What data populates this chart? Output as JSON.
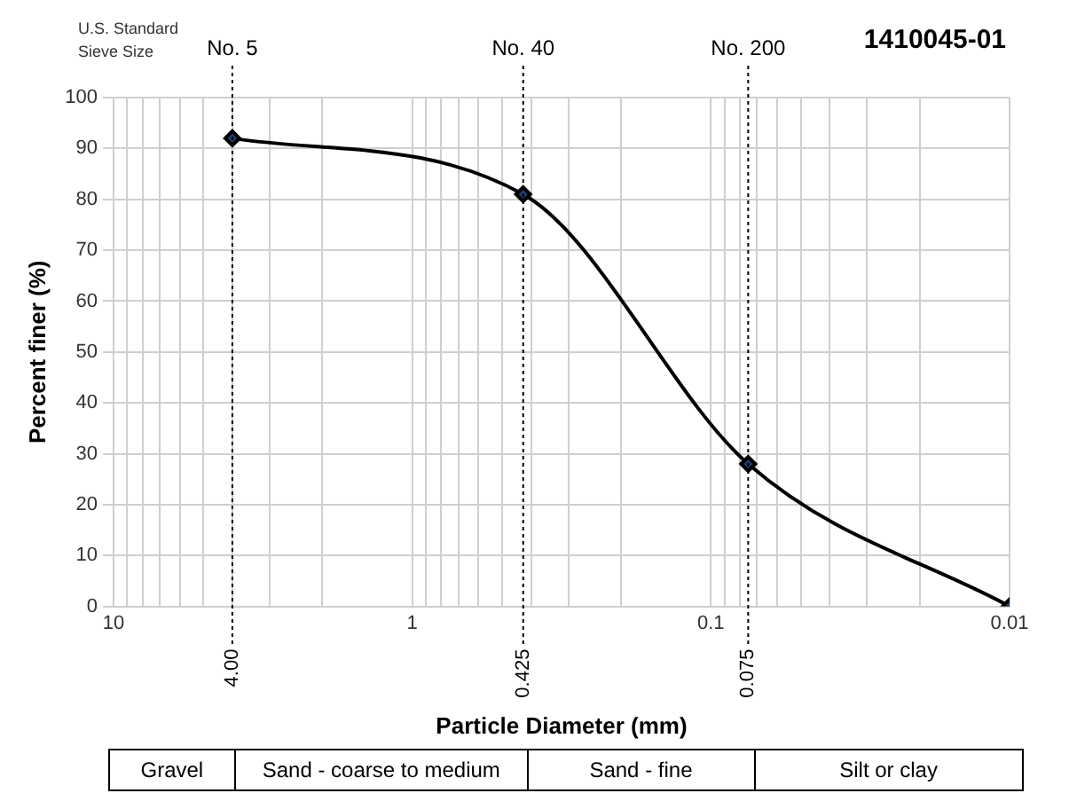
{
  "chart_data": {
    "type": "line",
    "title": "1410045-01",
    "xlabel": "Particle Diameter (mm)",
    "ylabel": "Percent finer (%)",
    "x": [
      4.0,
      0.425,
      0.075,
      0.01
    ],
    "series": [
      {
        "color": "#000000",
        "values": [
          92,
          81,
          28,
          0
        ]
      }
    ],
    "marker": "diamond",
    "line_style": "solid",
    "log": "x",
    "grid": true,
    "legend": false,
    "xlim": [
      10,
      0.01
    ],
    "xticks": [
      10,
      {
        "value": 9,
        "label": null
      },
      {
        "value": 8,
        "label": null
      },
      {
        "value": 7,
        "label": null
      },
      {
        "value": 6,
        "label": null
      },
      {
        "value": 5,
        "label": null
      },
      {
        "value": 4,
        "label": null
      },
      {
        "value": 3,
        "label": null
      },
      {
        "value": 2,
        "label": null
      },
      1,
      {
        "value": 0.9,
        "label": null
      },
      {
        "value": 0.8,
        "label": null
      },
      {
        "value": 0.7,
        "label": null
      },
      {
        "value": 0.6,
        "label": null
      },
      {
        "value": 0.5,
        "label": null
      },
      {
        "value": 0.4,
        "label": null
      },
      {
        "value": 0.3,
        "label": null
      },
      {
        "value": 0.2,
        "label": null
      },
      0.1,
      {
        "value": 0.09,
        "label": null
      },
      {
        "value": 0.08,
        "label": null
      },
      {
        "value": 0.07,
        "label": null
      },
      {
        "value": 0.06,
        "label": null
      },
      {
        "value": 0.05,
        "label": null
      },
      {
        "value": 0.04,
        "label": null
      },
      {
        "value": 0.03,
        "label": null
      },
      {
        "value": 0.02,
        "label": null
      },
      0.01
    ],
    "ylim": [
      0,
      100
    ],
    "yticks": [
      0,
      10,
      20,
      30,
      40,
      50,
      60,
      70,
      80,
      90,
      100
    ],
    "ref_lines": [
      {
        "axis": "x",
        "value": 4.0,
        "label": "No. 5",
        "line_style": "dotted",
        "color": "#000000"
      },
      {
        "axis": "x",
        "value": 0.425,
        "label": "No. 40",
        "line_style": "dotted",
        "color": "#000000"
      },
      {
        "axis": "x",
        "value": 0.075,
        "label": "No. 200",
        "line_style": "dotted",
        "color": "#000000"
      }
    ],
    "annotations": [
      "U.S. Standard Sieve Size",
      "4.00",
      "0.425",
      "0.075",
      "Gravel",
      "Sand - coarse to medium",
      "Sand - fine",
      "Silt or clay"
    ]
  }
}
